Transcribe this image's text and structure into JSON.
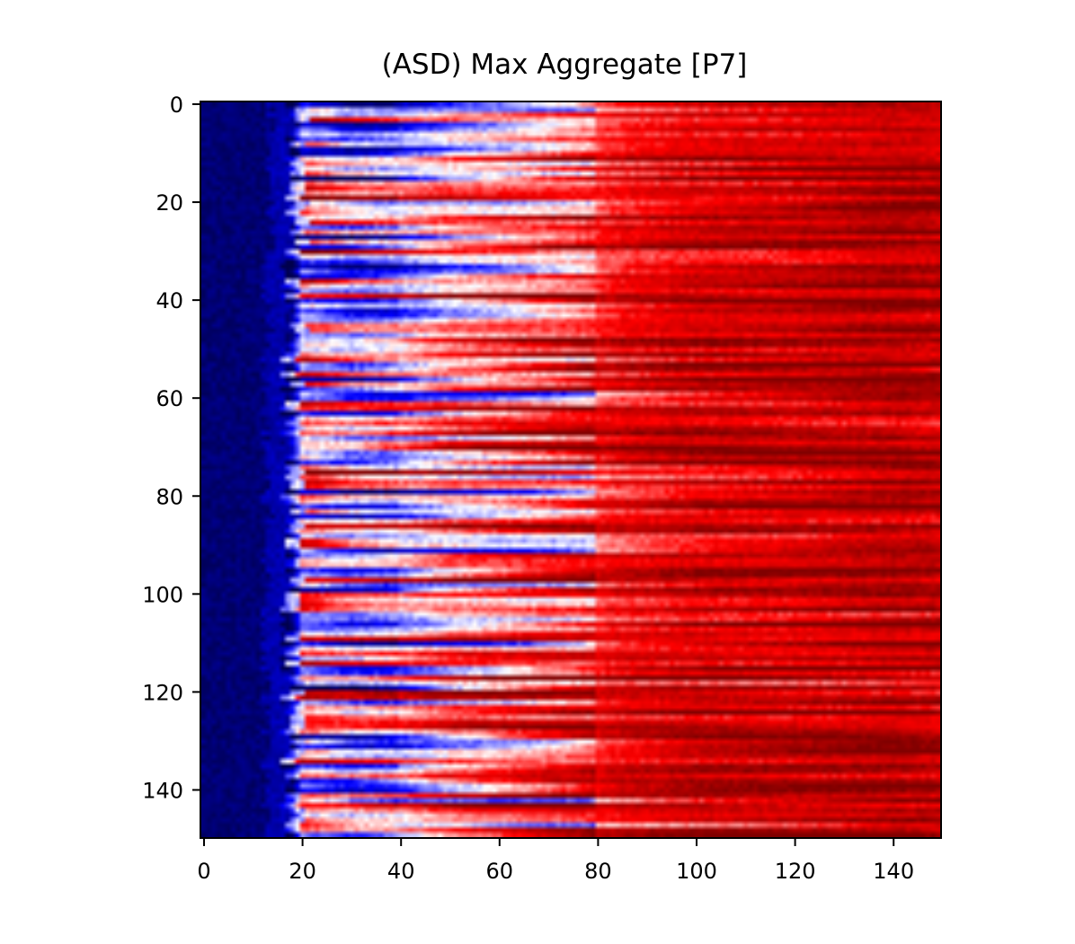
{
  "title": "(ASD) Max Aggregate [P7]",
  "chart_data": {
    "type": "heatmap",
    "title": "(ASD) Max Aggregate [P7]",
    "xlabel": "",
    "ylabel": "",
    "rows": 150,
    "cols": 150,
    "xlim": [
      0,
      150
    ],
    "ylim": [
      150,
      0
    ],
    "x_ticks": [
      0,
      20,
      40,
      60,
      80,
      100,
      120,
      140
    ],
    "y_ticks": [
      0,
      20,
      40,
      60,
      80,
      100,
      120,
      140
    ],
    "x_tick_labels": [
      "0",
      "20",
      "40",
      "60",
      "80",
      "100",
      "120",
      "140"
    ],
    "y_tick_labels": [
      "0",
      "20",
      "40",
      "60",
      "80",
      "100",
      "120",
      "140"
    ],
    "colormap": "seismic",
    "colormap_stops": [
      "#00004c",
      "#0000ff",
      "#ffffff",
      "#ff0000",
      "#800000"
    ],
    "column_profile": {
      "x": [
        0,
        15,
        18,
        20,
        30,
        40,
        50,
        60,
        75,
        85,
        100,
        120,
        140,
        149
      ],
      "mean_value": [
        0.03,
        0.06,
        0.25,
        0.55,
        0.45,
        0.48,
        0.58,
        0.62,
        0.7,
        0.78,
        0.84,
        0.86,
        0.9,
        0.88
      ]
    },
    "grid": false,
    "legend": "none"
  }
}
